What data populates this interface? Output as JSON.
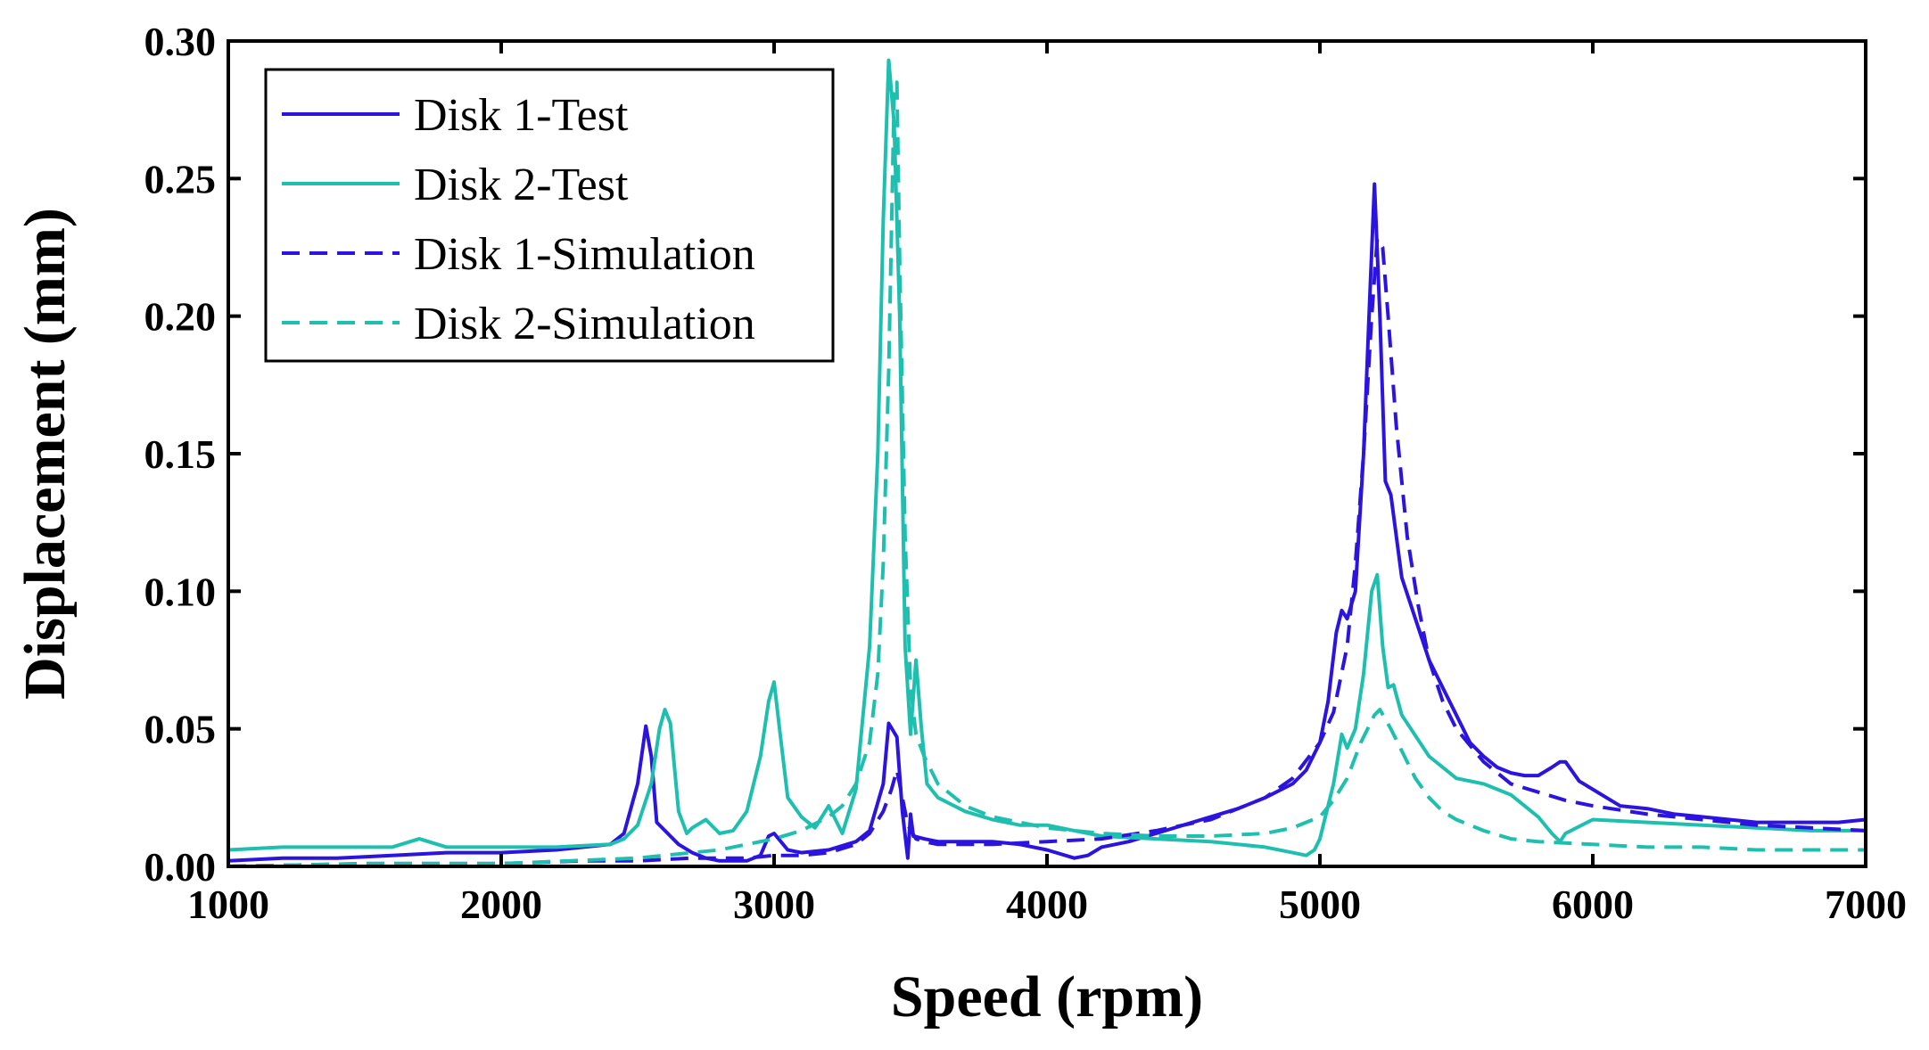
{
  "chart_data": {
    "type": "line",
    "title": "",
    "xlabel": "Speed (rpm)",
    "ylabel": "Displacement (mm)",
    "xlim": [
      1000,
      7000
    ],
    "ylim": [
      0,
      0.3
    ],
    "x_ticks": [
      1000,
      2000,
      3000,
      4000,
      5000,
      6000,
      7000
    ],
    "x_tick_labels": [
      "1000",
      "2000",
      "3000",
      "4000",
      "5000",
      "6000",
      "7000"
    ],
    "y_ticks": [
      0,
      0.05,
      0.1,
      0.15,
      0.2,
      0.25,
      0.3
    ],
    "y_tick_labels": [
      "0.00",
      "0.05",
      "0.10",
      "0.15",
      "0.20",
      "0.25",
      "0.30"
    ],
    "grid": false,
    "legend_position": "top-left",
    "colors": {
      "disk1": "#2b14e0",
      "disk2": "#1fbfb0"
    },
    "series": [
      {
        "name": "Disk 1-Test",
        "color": "#2b14e0",
        "dashed": false,
        "x": [
          1000,
          1200,
          1400,
          1600,
          1800,
          2000,
          2200,
          2400,
          2450,
          2500,
          2530,
          2550,
          2570,
          2600,
          2650,
          2700,
          2750,
          2800,
          2900,
          2950,
          2980,
          3000,
          3050,
          3100,
          3200,
          3300,
          3350,
          3400,
          3420,
          3450,
          3470,
          3490,
          3500,
          3510,
          3550,
          3600,
          3700,
          3800,
          3900,
          4000,
          4100,
          4150,
          4200,
          4300,
          4400,
          4500,
          4600,
          4700,
          4800,
          4900,
          4950,
          5000,
          5030,
          5060,
          5080,
          5100,
          5130,
          5160,
          5180,
          5200,
          5220,
          5240,
          5260,
          5280,
          5300,
          5350,
          5400,
          5450,
          5500,
          5550,
          5600,
          5650,
          5700,
          5750,
          5800,
          5850,
          5880,
          5900,
          5950,
          6000,
          6100,
          6200,
          6300,
          6400,
          6500,
          6600,
          6700,
          6800,
          6900,
          7000
        ],
        "y": [
          0.002,
          0.003,
          0.003,
          0.004,
          0.005,
          0.005,
          0.006,
          0.008,
          0.012,
          0.03,
          0.051,
          0.04,
          0.016,
          0.013,
          0.008,
          0.005,
          0.003,
          0.002,
          0.002,
          0.004,
          0.011,
          0.012,
          0.006,
          0.005,
          0.006,
          0.009,
          0.013,
          0.03,
          0.052,
          0.047,
          0.02,
          0.003,
          0.019,
          0.011,
          0.01,
          0.009,
          0.009,
          0.009,
          0.008,
          0.006,
          0.003,
          0.004,
          0.007,
          0.009,
          0.012,
          0.015,
          0.018,
          0.021,
          0.025,
          0.03,
          0.035,
          0.045,
          0.06,
          0.085,
          0.093,
          0.09,
          0.1,
          0.15,
          0.2,
          0.248,
          0.2,
          0.14,
          0.135,
          0.12,
          0.105,
          0.09,
          0.075,
          0.065,
          0.055,
          0.045,
          0.04,
          0.036,
          0.034,
          0.033,
          0.033,
          0.036,
          0.038,
          0.038,
          0.031,
          0.028,
          0.022,
          0.021,
          0.019,
          0.018,
          0.017,
          0.016,
          0.016,
          0.016,
          0.016,
          0.017
        ]
      },
      {
        "name": "Disk 2-Test",
        "color": "#1fbfb0",
        "dashed": false,
        "x": [
          1000,
          1200,
          1400,
          1600,
          1700,
          1800,
          2000,
          2200,
          2400,
          2450,
          2500,
          2550,
          2580,
          2600,
          2620,
          2650,
          2680,
          2700,
          2750,
          2800,
          2850,
          2900,
          2950,
          2980,
          3000,
          3020,
          3050,
          3100,
          3150,
          3200,
          3250,
          3300,
          3350,
          3380,
          3400,
          3420,
          3440,
          3460,
          3480,
          3500,
          3520,
          3540,
          3560,
          3600,
          3700,
          3800,
          3900,
          4000,
          4100,
          4200,
          4400,
          4600,
          4800,
          4900,
          4950,
          4980,
          5000,
          5050,
          5080,
          5100,
          5130,
          5160,
          5190,
          5210,
          5230,
          5250,
          5270,
          5300,
          5400,
          5500,
          5600,
          5700,
          5750,
          5800,
          5850,
          5880,
          5900,
          6000,
          6200,
          6400,
          6600,
          6800,
          7000
        ],
        "y": [
          0.006,
          0.007,
          0.007,
          0.007,
          0.01,
          0.007,
          0.007,
          0.007,
          0.008,
          0.01,
          0.015,
          0.03,
          0.05,
          0.057,
          0.052,
          0.02,
          0.012,
          0.014,
          0.017,
          0.012,
          0.013,
          0.02,
          0.04,
          0.06,
          0.067,
          0.05,
          0.025,
          0.018,
          0.014,
          0.022,
          0.012,
          0.028,
          0.08,
          0.15,
          0.235,
          0.293,
          0.27,
          0.2,
          0.08,
          0.048,
          0.075,
          0.05,
          0.03,
          0.025,
          0.02,
          0.017,
          0.015,
          0.015,
          0.013,
          0.011,
          0.01,
          0.009,
          0.007,
          0.005,
          0.004,
          0.006,
          0.01,
          0.03,
          0.048,
          0.043,
          0.05,
          0.07,
          0.1,
          0.106,
          0.08,
          0.065,
          0.066,
          0.055,
          0.04,
          0.032,
          0.03,
          0.026,
          0.022,
          0.018,
          0.012,
          0.009,
          0.012,
          0.017,
          0.016,
          0.015,
          0.014,
          0.013,
          0.013
        ]
      },
      {
        "name": "Disk 1-Simulation",
        "color": "#2b14e0",
        "dashed": true,
        "x": [
          1000,
          1500,
          2000,
          2300,
          2500,
          2700,
          2900,
          3000,
          3100,
          3200,
          3300,
          3350,
          3400,
          3430,
          3450,
          3470,
          3490,
          3520,
          3550,
          3600,
          3700,
          3800,
          4000,
          4200,
          4400,
          4600,
          4800,
          4900,
          5000,
          5050,
          5100,
          5130,
          5160,
          5190,
          5210,
          5230,
          5250,
          5280,
          5320,
          5360,
          5400,
          5450,
          5500,
          5600,
          5700,
          5800,
          5900,
          6000,
          6200,
          6400,
          6600,
          6800,
          7000
        ],
        "y": [
          0,
          0.001,
          0.001,
          0.002,
          0.002,
          0.003,
          0.003,
          0.004,
          0.004,
          0.005,
          0.008,
          0.012,
          0.02,
          0.028,
          0.035,
          0.025,
          0.015,
          0.01,
          0.009,
          0.008,
          0.008,
          0.008,
          0.009,
          0.01,
          0.013,
          0.017,
          0.025,
          0.032,
          0.045,
          0.056,
          0.08,
          0.11,
          0.15,
          0.2,
          0.228,
          0.225,
          0.2,
          0.16,
          0.12,
          0.095,
          0.075,
          0.06,
          0.05,
          0.038,
          0.03,
          0.027,
          0.024,
          0.022,
          0.019,
          0.017,
          0.015,
          0.014,
          0.013
        ]
      },
      {
        "name": "Disk 2-Simulation",
        "color": "#1fbfb0",
        "dashed": true,
        "x": [
          1000,
          1500,
          2000,
          2500,
          2800,
          3000,
          3100,
          3200,
          3250,
          3300,
          3350,
          3380,
          3400,
          3420,
          3440,
          3450,
          3460,
          3480,
          3500,
          3520,
          3550,
          3600,
          3700,
          3800,
          4000,
          4200,
          4400,
          4600,
          4800,
          4900,
          5000,
          5050,
          5100,
          5150,
          5200,
          5220,
          5260,
          5300,
          5350,
          5400,
          5450,
          5500,
          5600,
          5700,
          5800,
          6000,
          6200,
          6400,
          6600,
          6800,
          7000
        ],
        "y": [
          0,
          0.001,
          0.001,
          0.003,
          0.006,
          0.01,
          0.013,
          0.018,
          0.022,
          0.03,
          0.045,
          0.07,
          0.11,
          0.18,
          0.28,
          0.285,
          0.22,
          0.12,
          0.065,
          0.048,
          0.04,
          0.03,
          0.022,
          0.018,
          0.014,
          0.012,
          0.011,
          0.011,
          0.012,
          0.014,
          0.018,
          0.024,
          0.032,
          0.045,
          0.055,
          0.057,
          0.05,
          0.042,
          0.032,
          0.025,
          0.02,
          0.017,
          0.013,
          0.01,
          0.009,
          0.008,
          0.007,
          0.007,
          0.006,
          0.006,
          0.006
        ]
      }
    ]
  }
}
